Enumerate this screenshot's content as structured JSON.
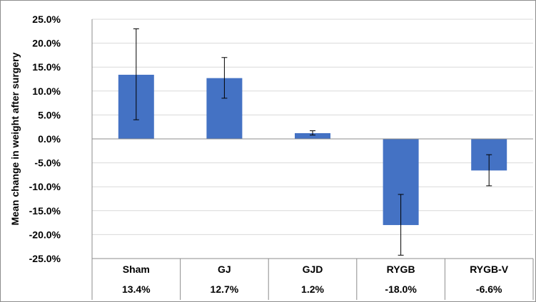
{
  "chart_data": {
    "type": "bar",
    "title": "",
    "xlabel": "",
    "ylabel": "Mean change in weight after surgery",
    "categories": [
      "Sham",
      "GJ",
      "GJD",
      "RYGB",
      "RYGB-V"
    ],
    "value_labels": [
      "13.4%",
      "12.7%",
      "1.2%",
      "-18.0%",
      "-6.6%"
    ],
    "series": [
      {
        "values": [
          13.4,
          12.7,
          1.2,
          -18.0,
          -6.6
        ],
        "error_low": [
          4.0,
          8.5,
          0.8,
          -24.3,
          -9.8
        ],
        "error_high": [
          23.0,
          17.0,
          1.7,
          -11.6,
          -3.3
        ],
        "color": "#4472c4"
      }
    ],
    "ylim": [
      -25,
      25
    ],
    "yticks": [
      25,
      20,
      15,
      10,
      5,
      0,
      -5,
      -10,
      -15,
      -20,
      -25
    ],
    "ytick_labels": [
      "25.0%",
      "20.0%",
      "15.0%",
      "10.0%",
      "5.0%",
      "0.0%",
      "-5.0%",
      "-10.0%",
      "-15.0%",
      "-20.0%",
      "-25.0%"
    ],
    "grid": true,
    "legend": "none",
    "table_below_axis": true
  },
  "colors": {
    "bar": "#4472c4",
    "grid": "#d9d9d9",
    "axis": "#8c8c8c",
    "error_bar": "#000000"
  }
}
